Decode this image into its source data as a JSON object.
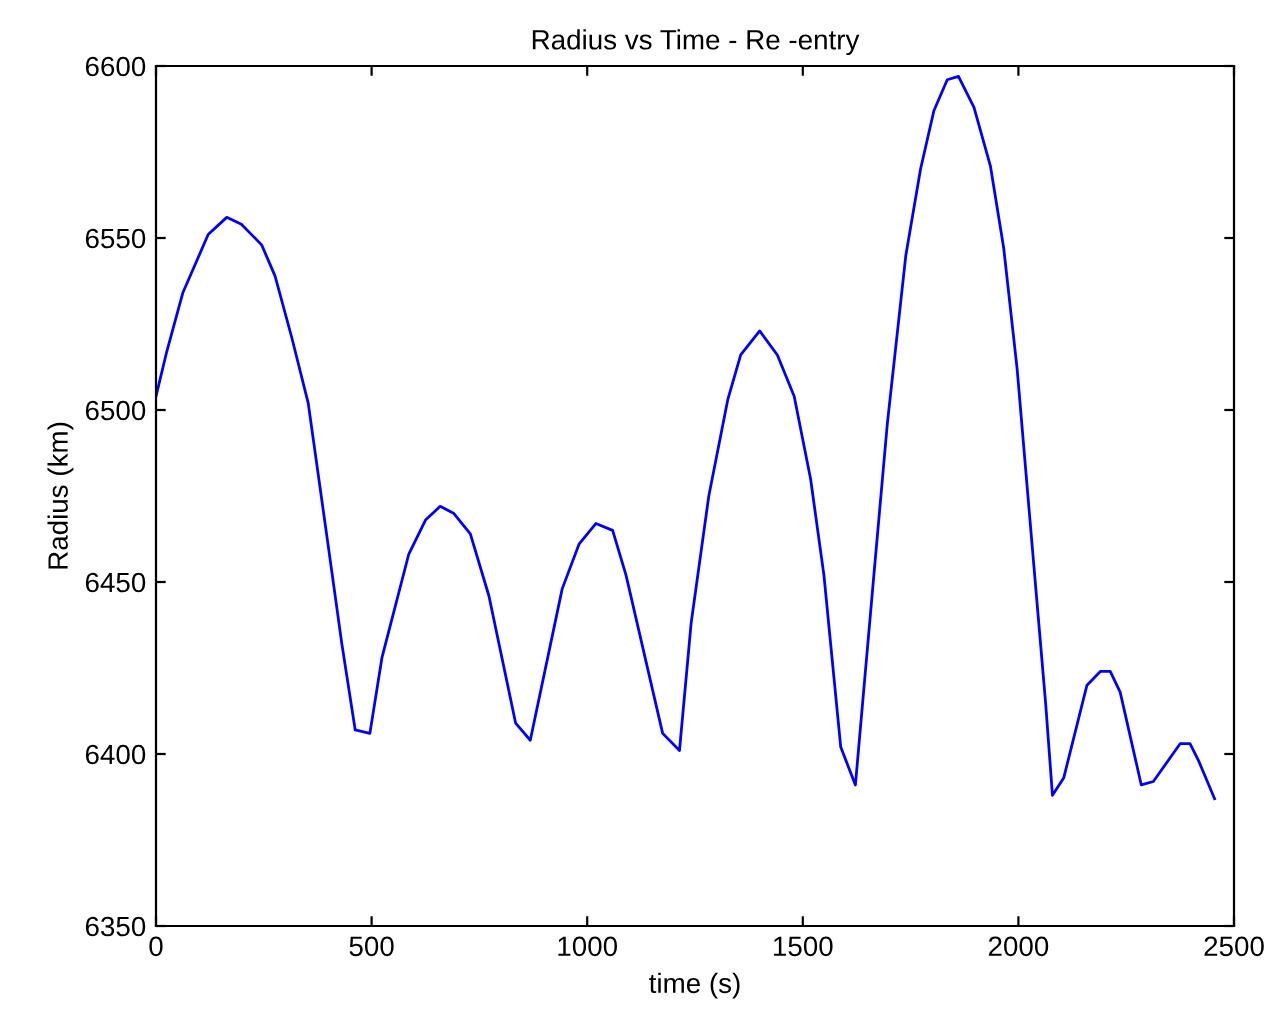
{
  "chart_data": {
    "type": "line",
    "title": "Radius vs Time - Re -entry",
    "xlabel": "time (s)",
    "ylabel": "Radius (km)",
    "xlim": [
      0,
      2500
    ],
    "xticks": [
      0,
      500,
      1000,
      1500,
      2000,
      2500
    ],
    "ylim": [
      6350,
      6600
    ],
    "yticks": [
      6350,
      6400,
      6450,
      6500,
      6550,
      6600
    ],
    "grid": false,
    "marker": "none",
    "line_style": "solid",
    "series": [
      {
        "color": "#0000ff",
        "x": [
          0,
          25,
          62,
          121,
          164,
          198,
          245,
          276,
          315,
          353,
          400,
          431,
          462,
          496,
          524,
          586,
          625,
          659,
          690,
          729,
          772,
          834,
          868,
          942,
          981,
          1020,
          1059,
          1090,
          1175,
          1214,
          1241,
          1282,
          1326,
          1356,
          1400,
          1441,
          1480,
          1518,
          1549,
          1588,
          1622,
          1662,
          1696,
          1739,
          1773,
          1804,
          1835,
          1861,
          1897,
          1935,
          1966,
          1997,
          2035,
          2063,
          2079,
          2105,
          2159,
          2190,
          2213,
          2236,
          2285,
          2313,
          2375,
          2398,
          2418,
          2455
        ],
        "values": [
          6504,
          6517,
          6534,
          6551,
          6556,
          6554,
          6548,
          6539,
          6521,
          6502,
          6460,
          6432,
          6407,
          6406,
          6428,
          6458,
          6468,
          6472,
          6470,
          6464,
          6446,
          6409,
          6404,
          6448,
          6461,
          6467,
          6465,
          6452,
          6406,
          6401,
          6438,
          6475,
          6503,
          6516,
          6523,
          6516,
          6504,
          6480,
          6452,
          6402,
          6391,
          6448,
          6496,
          6545,
          6570,
          6587,
          6596,
          6597,
          6588,
          6571,
          6547,
          6512,
          6456,
          6415,
          6388,
          6393,
          6420,
          6424,
          6424,
          6418,
          6391,
          6392,
          6403,
          6403,
          6398,
          6387
        ]
      }
    ]
  }
}
